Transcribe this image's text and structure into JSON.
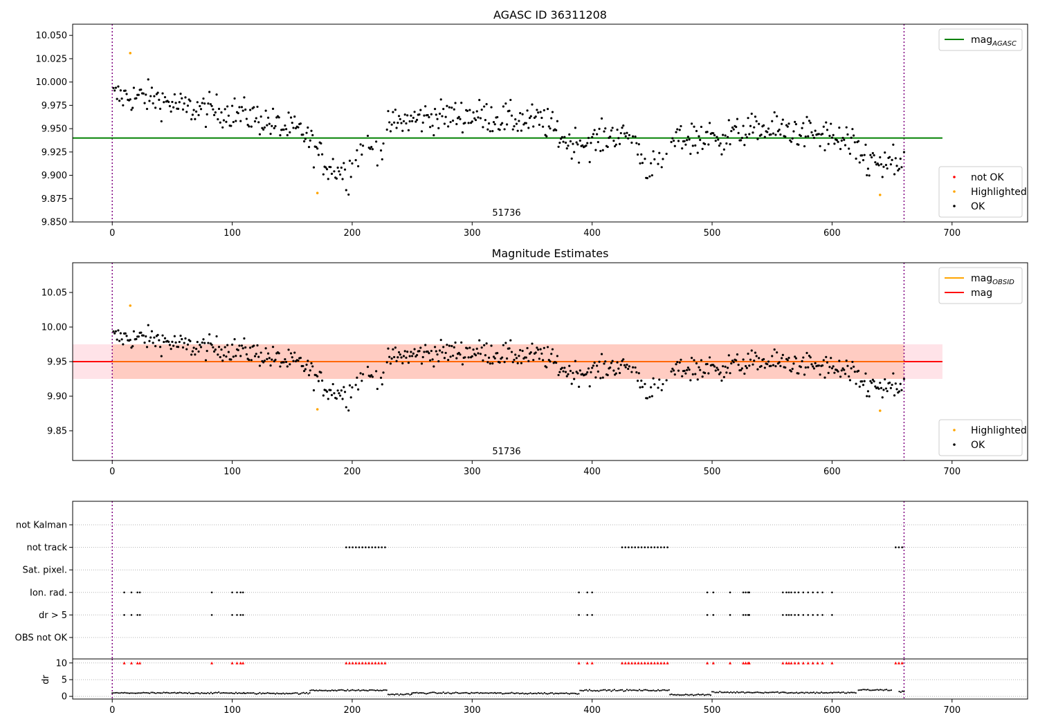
{
  "chart_data": [
    {
      "type": "scatter",
      "title": "AGASC ID 36311208",
      "annotation": "51736",
      "xlim": [
        -33,
        763
      ],
      "ylim": [
        9.85,
        10.062
      ],
      "xticks": [
        0,
        100,
        200,
        300,
        400,
        500,
        600,
        700
      ],
      "yticks": [
        9.85,
        9.875,
        9.9,
        9.925,
        9.95,
        9.975,
        10.0,
        10.025,
        10.05
      ],
      "ytick_labels": [
        "9.850",
        "9.875",
        "9.900",
        "9.925",
        "9.950",
        "9.975",
        "10.000",
        "10.025",
        "10.050"
      ],
      "vlines": [
        0,
        660
      ],
      "hline": {
        "y": 9.94,
        "x0": -33,
        "x1": 692,
        "color": "#008000"
      },
      "highlighted": [
        {
          "x": 15,
          "y": 10.031
        },
        {
          "x": 171,
          "y": 9.881
        },
        {
          "x": 640,
          "y": 9.879
        }
      ],
      "legend_top": {
        "placement": "top-right",
        "entries": [
          {
            "label": "mag",
            "sub": "AGASC",
            "color": "#008000",
            "kind": "line"
          }
        ]
      },
      "legend_bottom": {
        "placement": "bottom-right",
        "entries": [
          {
            "label": "not OK",
            "color": "#ff0000",
            "kind": "dot"
          },
          {
            "label": "Highlighted",
            "color": "#ffa500",
            "kind": "dot"
          },
          {
            "label": "OK",
            "color": "#000000",
            "kind": "dot"
          }
        ]
      },
      "series_trend": {
        "name": "OK",
        "color": "#000000",
        "x_max": 660,
        "knots": [
          [
            0,
            9.985
          ],
          [
            35,
            9.983
          ],
          [
            60,
            9.972
          ],
          [
            100,
            9.968
          ],
          [
            120,
            9.962
          ],
          [
            140,
            9.952
          ],
          [
            160,
            9.945
          ],
          [
            168,
            9.93
          ],
          [
            178,
            9.912
          ],
          [
            195,
            9.903
          ],
          [
            210,
            9.928
          ],
          [
            225,
            9.93
          ],
          [
            232,
            9.955
          ],
          [
            260,
            9.962
          ],
          [
            300,
            9.965
          ],
          [
            330,
            9.96
          ],
          [
            360,
            9.958
          ],
          [
            380,
            9.935
          ],
          [
            400,
            9.935
          ],
          [
            420,
            9.945
          ],
          [
            435,
            9.94
          ],
          [
            445,
            9.91
          ],
          [
            458,
            9.905
          ],
          [
            470,
            9.94
          ],
          [
            500,
            9.94
          ],
          [
            540,
            9.95
          ],
          [
            580,
            9.945
          ],
          [
            600,
            9.94
          ],
          [
            615,
            9.932
          ],
          [
            625,
            9.92
          ],
          [
            640,
            9.91
          ],
          [
            660,
            9.912
          ]
        ]
      }
    },
    {
      "type": "scatter",
      "title": "Magnitude Estimates",
      "annotation": "51736",
      "xlim": [
        -33,
        763
      ],
      "ylim": [
        9.807,
        10.093
      ],
      "xticks": [
        0,
        100,
        200,
        300,
        400,
        500,
        600,
        700
      ],
      "yticks": [
        9.85,
        9.9,
        9.95,
        10.0,
        10.05
      ],
      "ytick_labels": [
        "9.85",
        "9.90",
        "9.95",
        "10.00",
        "10.05"
      ],
      "vlines": [
        0,
        660
      ],
      "bands": [
        {
          "y0": 9.925,
          "y1": 9.975,
          "x0": -33,
          "x1": 692,
          "color": "#ffc0cb",
          "opacity": 0.45
        },
        {
          "y0": 9.925,
          "y1": 9.975,
          "x0": 0,
          "x1": 660,
          "color": "#ffa07a",
          "opacity": 0.35
        }
      ],
      "hline": {
        "y": 9.95,
        "x0": -33,
        "x1": 692,
        "color": "#ff0000"
      },
      "hline_obsid": {
        "y": 9.95,
        "x0": 0,
        "x1": 660,
        "color": "#ffa500"
      },
      "highlighted": [
        {
          "x": 15,
          "y": 10.031
        },
        {
          "x": 171,
          "y": 9.881
        },
        {
          "x": 640,
          "y": 9.879
        }
      ],
      "legend_top": {
        "placement": "top-right",
        "entries": [
          {
            "label": "mag",
            "sub": "OBSID",
            "color": "#ffa500",
            "kind": "line"
          },
          {
            "label": "mag",
            "sub": "",
            "color": "#ff0000",
            "kind": "line"
          }
        ]
      },
      "legend_bottom": {
        "placement": "bottom-right",
        "entries": [
          {
            "label": "Highlighted",
            "color": "#ffa500",
            "kind": "dot"
          },
          {
            "label": "OK",
            "color": "#000000",
            "kind": "dot"
          }
        ]
      }
    },
    {
      "type": "scatter",
      "xlim": [
        -33,
        763
      ],
      "xticks": [
        0,
        100,
        200,
        300,
        400,
        500,
        600,
        700
      ],
      "vlines": [
        0,
        660
      ],
      "flag_rows": [
        "not Kalman",
        "not track",
        "Sat. pixel.",
        "Ion. rad.",
        "dr > 5",
        "OBS not OK"
      ],
      "flags": {
        "not track": [
          [
            195,
            230
          ],
          [
            425,
            465
          ],
          [
            653,
            659
          ]
        ],
        "Ion. rad.": [
          10,
          16,
          21,
          23,
          83,
          100,
          104,
          107,
          109,
          389,
          396,
          400,
          496,
          501,
          515,
          526,
          528,
          530,
          531,
          559,
          562,
          564,
          566,
          569,
          572,
          576,
          580,
          584,
          588,
          592,
          600
        ],
        "dr > 5": [
          10,
          16,
          21,
          23,
          83,
          100,
          104,
          107,
          109,
          389,
          396,
          400,
          496,
          501,
          515,
          526,
          528,
          530,
          531,
          559,
          562,
          564,
          566,
          569,
          572,
          576,
          580,
          584,
          588,
          592,
          600
        ]
      },
      "dr": {
        "ylabel": "dr",
        "ylim": [
          -0.8,
          11.2
        ],
        "yticks": [
          0,
          5,
          10
        ],
        "ytick_labels": [
          "0",
          "5",
          "10"
        ],
        "clip_value": 10,
        "clip_color": "#ff0000",
        "segments": [
          [
            0,
            55,
            1.0
          ],
          [
            55,
            110,
            1.0
          ],
          [
            110,
            165,
            0.9
          ],
          [
            165,
            230,
            1.8
          ],
          [
            230,
            250,
            0.6
          ],
          [
            250,
            320,
            1.0
          ],
          [
            320,
            390,
            0.9
          ],
          [
            390,
            465,
            1.8
          ],
          [
            465,
            500,
            0.5
          ],
          [
            500,
            560,
            1.2
          ],
          [
            560,
            620,
            1.1
          ],
          [
            622,
            650,
            1.9
          ],
          [
            656,
            660,
            1.4
          ]
        ]
      }
    }
  ]
}
